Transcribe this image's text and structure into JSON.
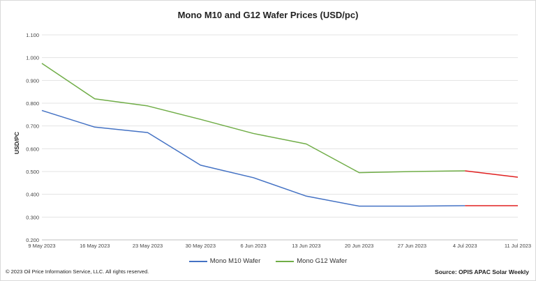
{
  "chart_data": {
    "type": "line",
    "title": "Mono M10 and G12 Wafer Prices (USD/pc)",
    "ylabel": "USD/PC",
    "xlabel": "",
    "categories": [
      "9 May 2023",
      "16 May 2023",
      "23 May 2023",
      "30 May 2023",
      "6 Jun 2023",
      "13 Jun 2023",
      "20 Jun 2023",
      "27 Jun 2023",
      "4 Jul 2023",
      "11 Jul 2023"
    ],
    "ylim": [
      0.2,
      1.1
    ],
    "yticks": [
      "0.200",
      "0.300",
      "0.400",
      "0.500",
      "0.600",
      "0.700",
      "0.800",
      "0.900",
      "1.000",
      "1.100"
    ],
    "grid": true,
    "legend_position": "bottom",
    "series": [
      {
        "name": "Mono M10 Wafer",
        "color": "#4472c4",
        "values": [
          0.768,
          0.695,
          0.671,
          0.528,
          0.473,
          0.392,
          0.348,
          0.348,
          0.35,
          0.35
        ]
      },
      {
        "name": "Mono G12 Wafer",
        "color": "#70ad47",
        "values": [
          0.975,
          0.819,
          0.788,
          0.729,
          0.667,
          0.621,
          0.495,
          0.5,
          0.503,
          0.475
        ]
      }
    ],
    "highlight_color": "#e02020",
    "highlight_from_index": 8
  },
  "footer": {
    "copyright": "© 2023 Oil Price Information Service, LLC. All rights reserved.",
    "source": "Source: OPIS APAC Solar Weekly"
  }
}
